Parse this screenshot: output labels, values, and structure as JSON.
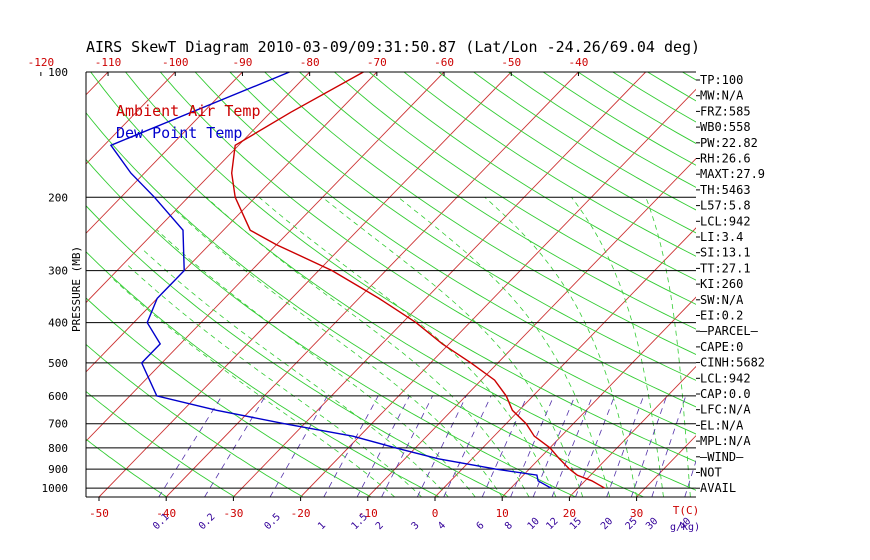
{
  "chart_data": {
    "type": "line",
    "title": "AIRS SkewT Diagram 2010-03-09/09:31:50.87 (Lat/Lon -24.26/69.04 deg)",
    "ylabel": "PRESSURE (MB)",
    "xlabel": "T(C)",
    "mixing_ratio_unit": "g/kg)",
    "y_scale": "log",
    "ylim": [
      1050,
      100
    ],
    "xlim_bottom": [
      -55,
      30
    ],
    "pressure_ticks": [
      100,
      200,
      300,
      400,
      500,
      600,
      700,
      800,
      900,
      1000
    ],
    "top_temp_ticks": [
      -120,
      -110,
      -100,
      -90,
      -80,
      -70,
      -60,
      -50,
      -40
    ],
    "bottom_temp_ticks": [
      -50,
      -40,
      -30,
      -20,
      -10,
      0,
      10,
      20,
      30
    ],
    "mixing_ratio_ticks": [
      "0.1",
      "0.2",
      "0.5",
      "1",
      "1.5",
      "2",
      "3",
      "4",
      "6",
      "8",
      "10",
      "12",
      "15",
      "20",
      "25",
      "30",
      "40"
    ],
    "legend": [
      "Ambient Air Temp",
      "Dew Point Temp"
    ],
    "series": [
      {
        "name": "Ambient Air Temp",
        "color": "#cc0000",
        "points": [
          {
            "p": 100,
            "t": -72
          },
          {
            "p": 125,
            "t": -77
          },
          {
            "p": 150,
            "t": -80.5
          },
          {
            "p": 175,
            "t": -77
          },
          {
            "p": 200,
            "t": -73
          },
          {
            "p": 240,
            "t": -66
          },
          {
            "p": 260,
            "t": -60
          },
          {
            "p": 300,
            "t": -48
          },
          {
            "p": 350,
            "t": -37
          },
          {
            "p": 400,
            "t": -28
          },
          {
            "p": 450,
            "t": -21
          },
          {
            "p": 500,
            "t": -14
          },
          {
            "p": 550,
            "t": -8
          },
          {
            "p": 600,
            "t": -4
          },
          {
            "p": 650,
            "t": -1
          },
          {
            "p": 700,
            "t": 3
          },
          {
            "p": 750,
            "t": 6
          },
          {
            "p": 800,
            "t": 10
          },
          {
            "p": 850,
            "t": 13
          },
          {
            "p": 900,
            "t": 16
          },
          {
            "p": 930,
            "t": 18
          },
          {
            "p": 960,
            "t": 21
          },
          {
            "p": 1000,
            "t": 24
          }
        ]
      },
      {
        "name": "Dew Point Temp",
        "color": "#0000cc",
        "points": [
          {
            "p": 100,
            "t": -83
          },
          {
            "p": 150,
            "t": -99
          },
          {
            "p": 175,
            "t": -92
          },
          {
            "p": 200,
            "t": -85
          },
          {
            "p": 240,
            "t": -76
          },
          {
            "p": 300,
            "t": -70
          },
          {
            "p": 350,
            "t": -70
          },
          {
            "p": 400,
            "t": -68
          },
          {
            "p": 450,
            "t": -63
          },
          {
            "p": 500,
            "t": -63
          },
          {
            "p": 600,
            "t": -56
          },
          {
            "p": 650,
            "t": -45
          },
          {
            "p": 700,
            "t": -33
          },
          {
            "p": 750,
            "t": -21
          },
          {
            "p": 800,
            "t": -13
          },
          {
            "p": 850,
            "t": -5
          },
          {
            "p": 900,
            "t": 5
          },
          {
            "p": 930,
            "t": 12
          },
          {
            "p": 960,
            "t": 13
          },
          {
            "p": 1000,
            "t": 16
          }
        ]
      }
    ]
  },
  "stats": [
    "TP:100",
    "MW:N/A",
    "FRZ:585",
    "WB0:558",
    "PW:22.82",
    "RH:26.6",
    "MAXT:27.9",
    "TH:5463",
    "L57:5.8",
    "LCL:942",
    "LI:3.4",
    "SI:13.1",
    "TT:27.1",
    "KI:260",
    "SW:N/A",
    "EI:0.2",
    "–PARCEL–",
    "CAPE:0",
    "CINH:5682",
    "LCL:942",
    "CAP:0.0",
    "LFC:N/A",
    "EL:N/A",
    "MPL:N/A",
    "–WIND–",
    "NOT",
    "AVAIL"
  ],
  "colors": {
    "isotherm": "#cc3333",
    "dry_adiabat": "#33cc33",
    "moist_adiabat": "#33cc33",
    "mixing_ratio": "#5533aa",
    "axis": "#000000"
  }
}
